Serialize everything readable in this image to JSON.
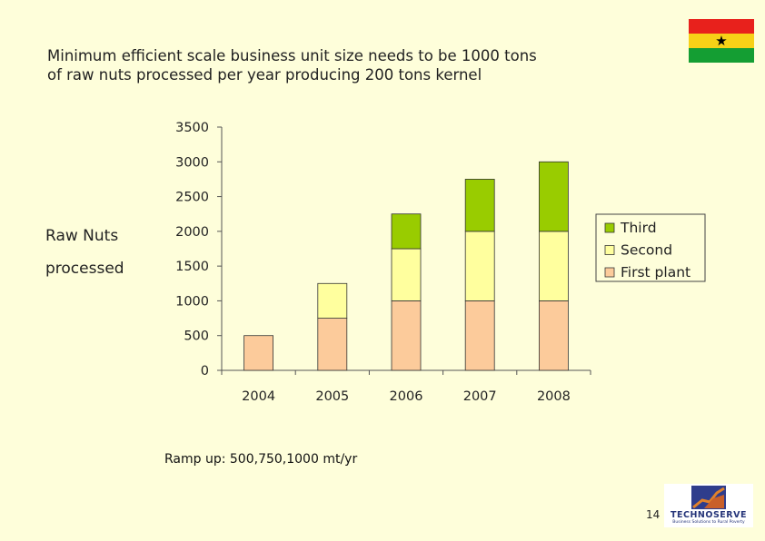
{
  "slide": {
    "title_line1": "Minimum efficient scale business unit size needs to be 1000 tons",
    "title_line2": "of raw nuts processed per year producing 200 tons kernel",
    "ylabel_line1": "Raw Nuts",
    "ylabel_line2": "processed",
    "note": "Ramp up: 500,750,1000 mt/yr",
    "page_number": "14",
    "logo": {
      "name": "TECHNOSERVE",
      "tagline": "Business Solutions to Rural Poverty"
    },
    "flag_colors": {
      "top": "#E8211C",
      "middle": "#F7D117",
      "bottom": "#149E33",
      "star": "#000000"
    }
  },
  "chart_data": {
    "type": "bar",
    "stacked": true,
    "categories": [
      "2004",
      "2005",
      "2006",
      "2007",
      "2008"
    ],
    "series": [
      {
        "name": "First plant",
        "color": "#FCCB9B",
        "values": [
          500,
          750,
          1000,
          1000,
          1000
        ]
      },
      {
        "name": "Second",
        "color": "#FFFF9E",
        "values": [
          0,
          500,
          750,
          1000,
          1000
        ]
      },
      {
        "name": "Third",
        "color": "#99CC00",
        "values": [
          0,
          0,
          500,
          750,
          1000
        ]
      }
    ],
    "legend_order": [
      "Third",
      "Second",
      "First plant"
    ],
    "legend_position": "right",
    "yticks": [
      "0",
      "500",
      "1000",
      "1500",
      "2000",
      "2500",
      "3000",
      "3500"
    ],
    "ylim": [
      0,
      3500
    ],
    "ylabel": "Raw Nuts processed",
    "xlabel": ""
  }
}
